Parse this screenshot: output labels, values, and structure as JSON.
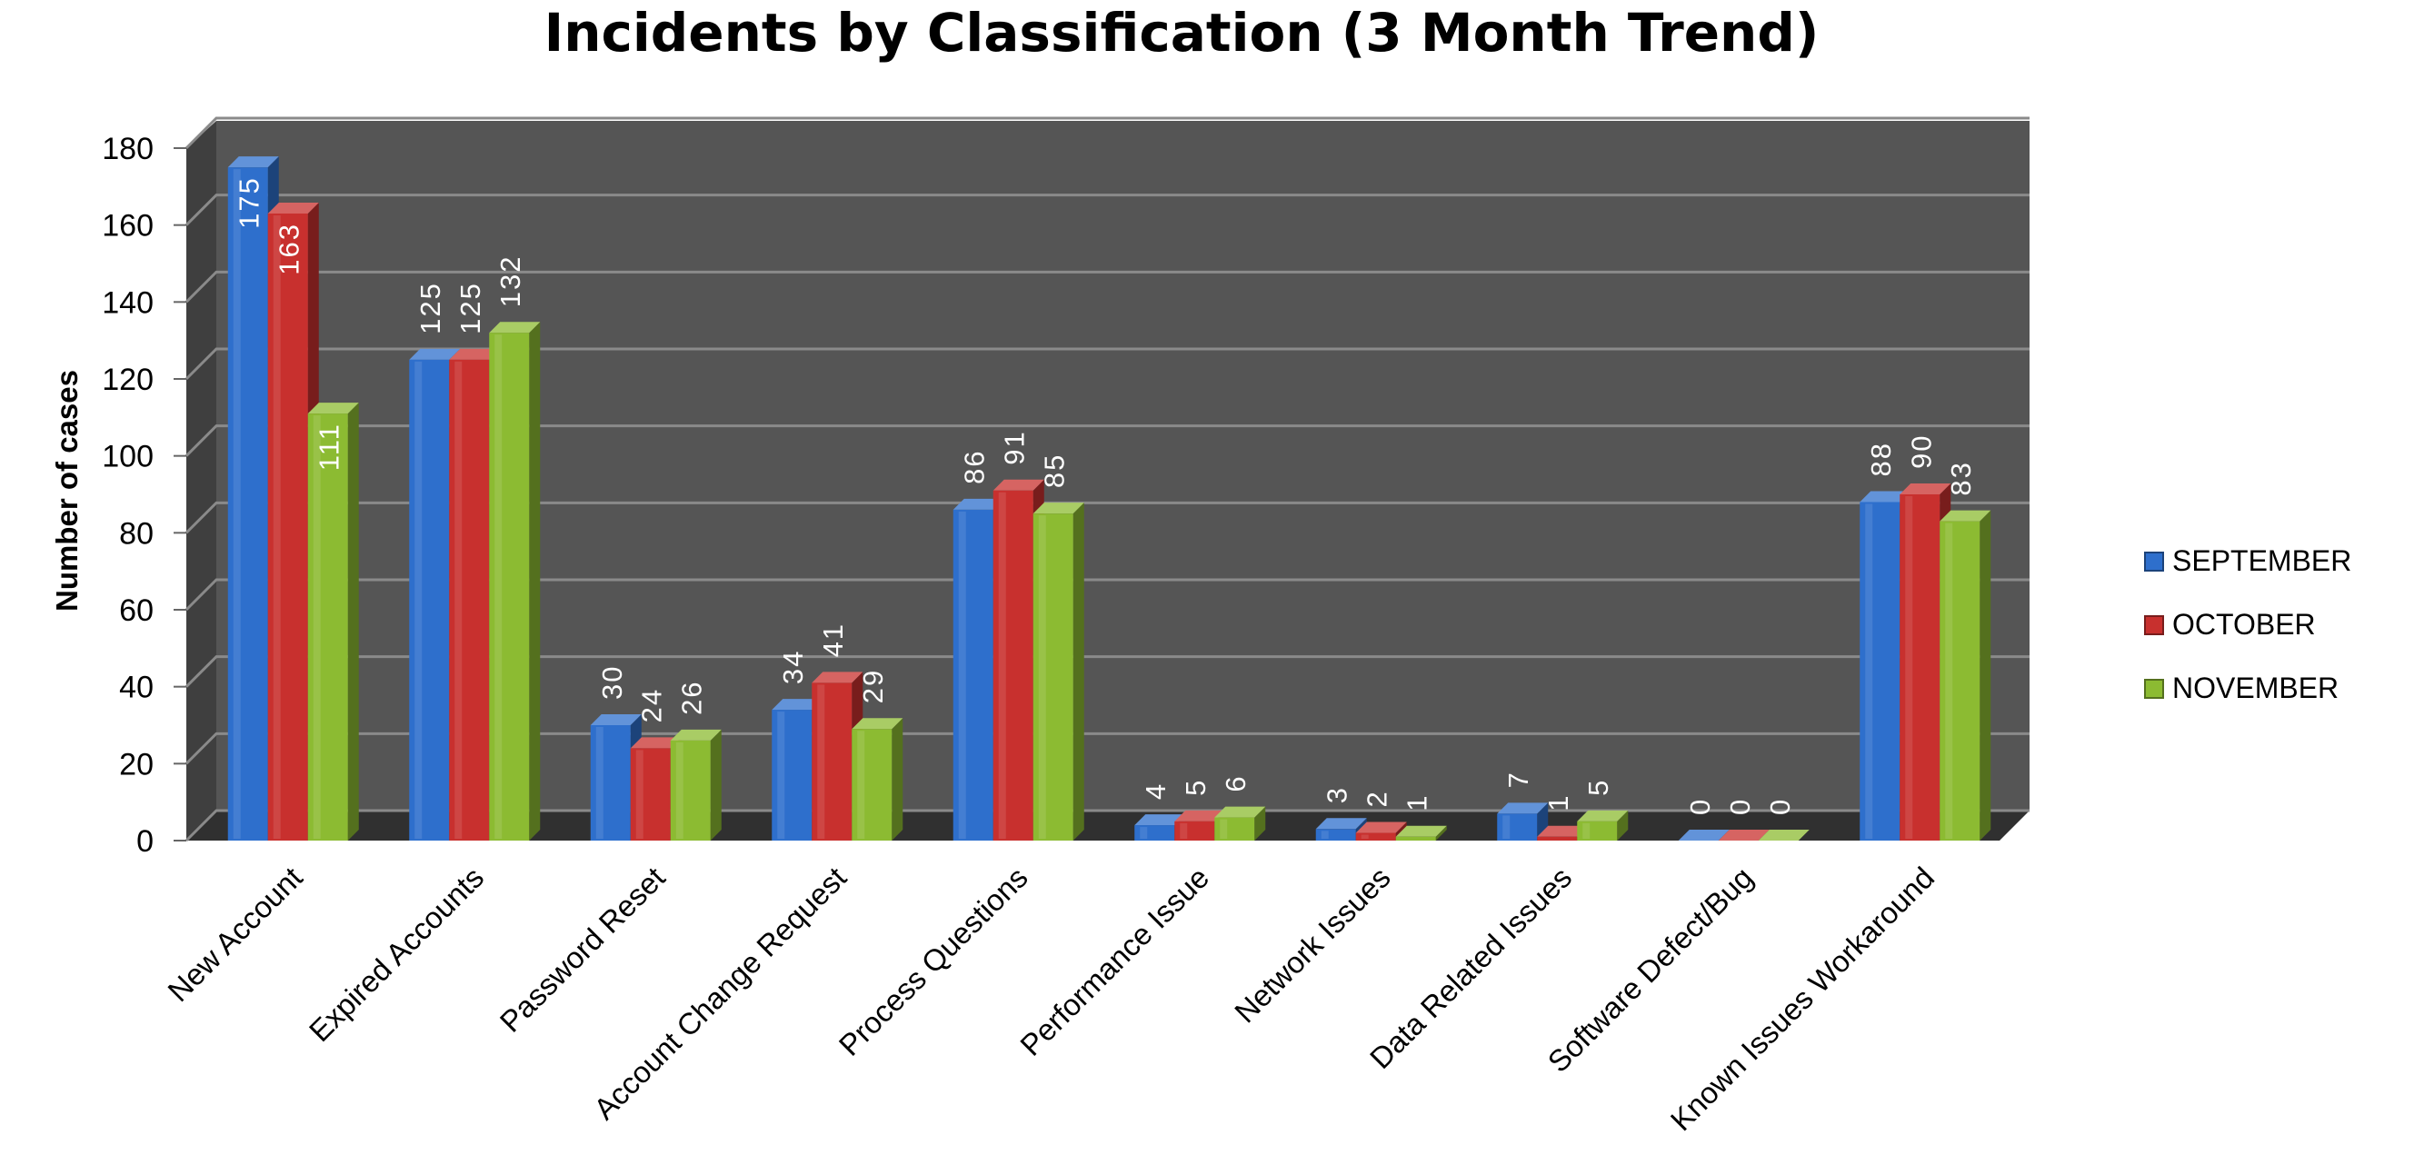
{
  "chart_data": {
    "type": "bar",
    "title": "Incidents by Classification (3 Month Trend)",
    "ylabel": "Number of cases",
    "xlabel": "",
    "ylim": [
      0,
      180
    ],
    "yticks": [
      0,
      20,
      40,
      60,
      80,
      100,
      120,
      140,
      160,
      180
    ],
    "grid": true,
    "legend_position": "right",
    "categories": [
      "New Account",
      "Expired Accounts",
      "Password Reset",
      "Account Change Request",
      "Process Questions",
      "Performance Issue",
      "Network Issues",
      "Data Related Issues",
      "Software Defect/Bug",
      "Known Issues Workaround"
    ],
    "series": [
      {
        "name": "SEPTEMBER",
        "color": "#2e6fcc",
        "values": [
          175,
          125,
          30,
          34,
          86,
          4,
          3,
          7,
          0,
          88
        ]
      },
      {
        "name": "OCTOBER",
        "color": "#c8302e",
        "values": [
          163,
          125,
          24,
          41,
          91,
          5,
          2,
          1,
          0,
          90
        ]
      },
      {
        "name": "NOVEMBER",
        "color": "#8cbb32",
        "values": [
          111,
          132,
          26,
          29,
          85,
          6,
          1,
          5,
          0,
          83
        ]
      }
    ],
    "plot_background": "#555555",
    "gridline_color": "#8a8a8a"
  }
}
